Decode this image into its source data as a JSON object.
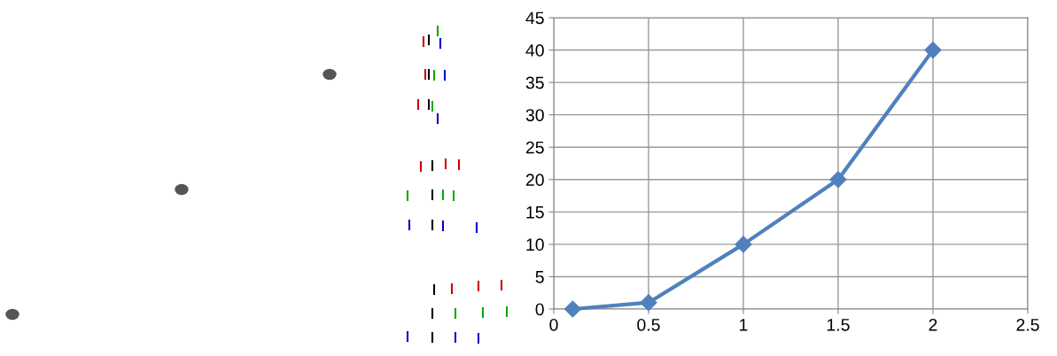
{
  "chart_data": {
    "type": "line",
    "x": [
      0.1,
      0.5,
      1,
      1.5,
      2
    ],
    "series": [
      {
        "color": "#4f81bd",
        "values": [
          0,
          1,
          10,
          20,
          40
        ]
      }
    ],
    "xlim": [
      0,
      2.5
    ],
    "xticks": [
      0,
      0.5,
      1,
      1.5,
      2,
      2.5
    ],
    "ylim": [
      0,
      45
    ],
    "yticks": [
      0,
      5,
      10,
      15,
      20,
      25,
      30,
      35,
      40,
      45
    ],
    "grid": true,
    "marker": "diamond",
    "line_style": "solid"
  }
}
